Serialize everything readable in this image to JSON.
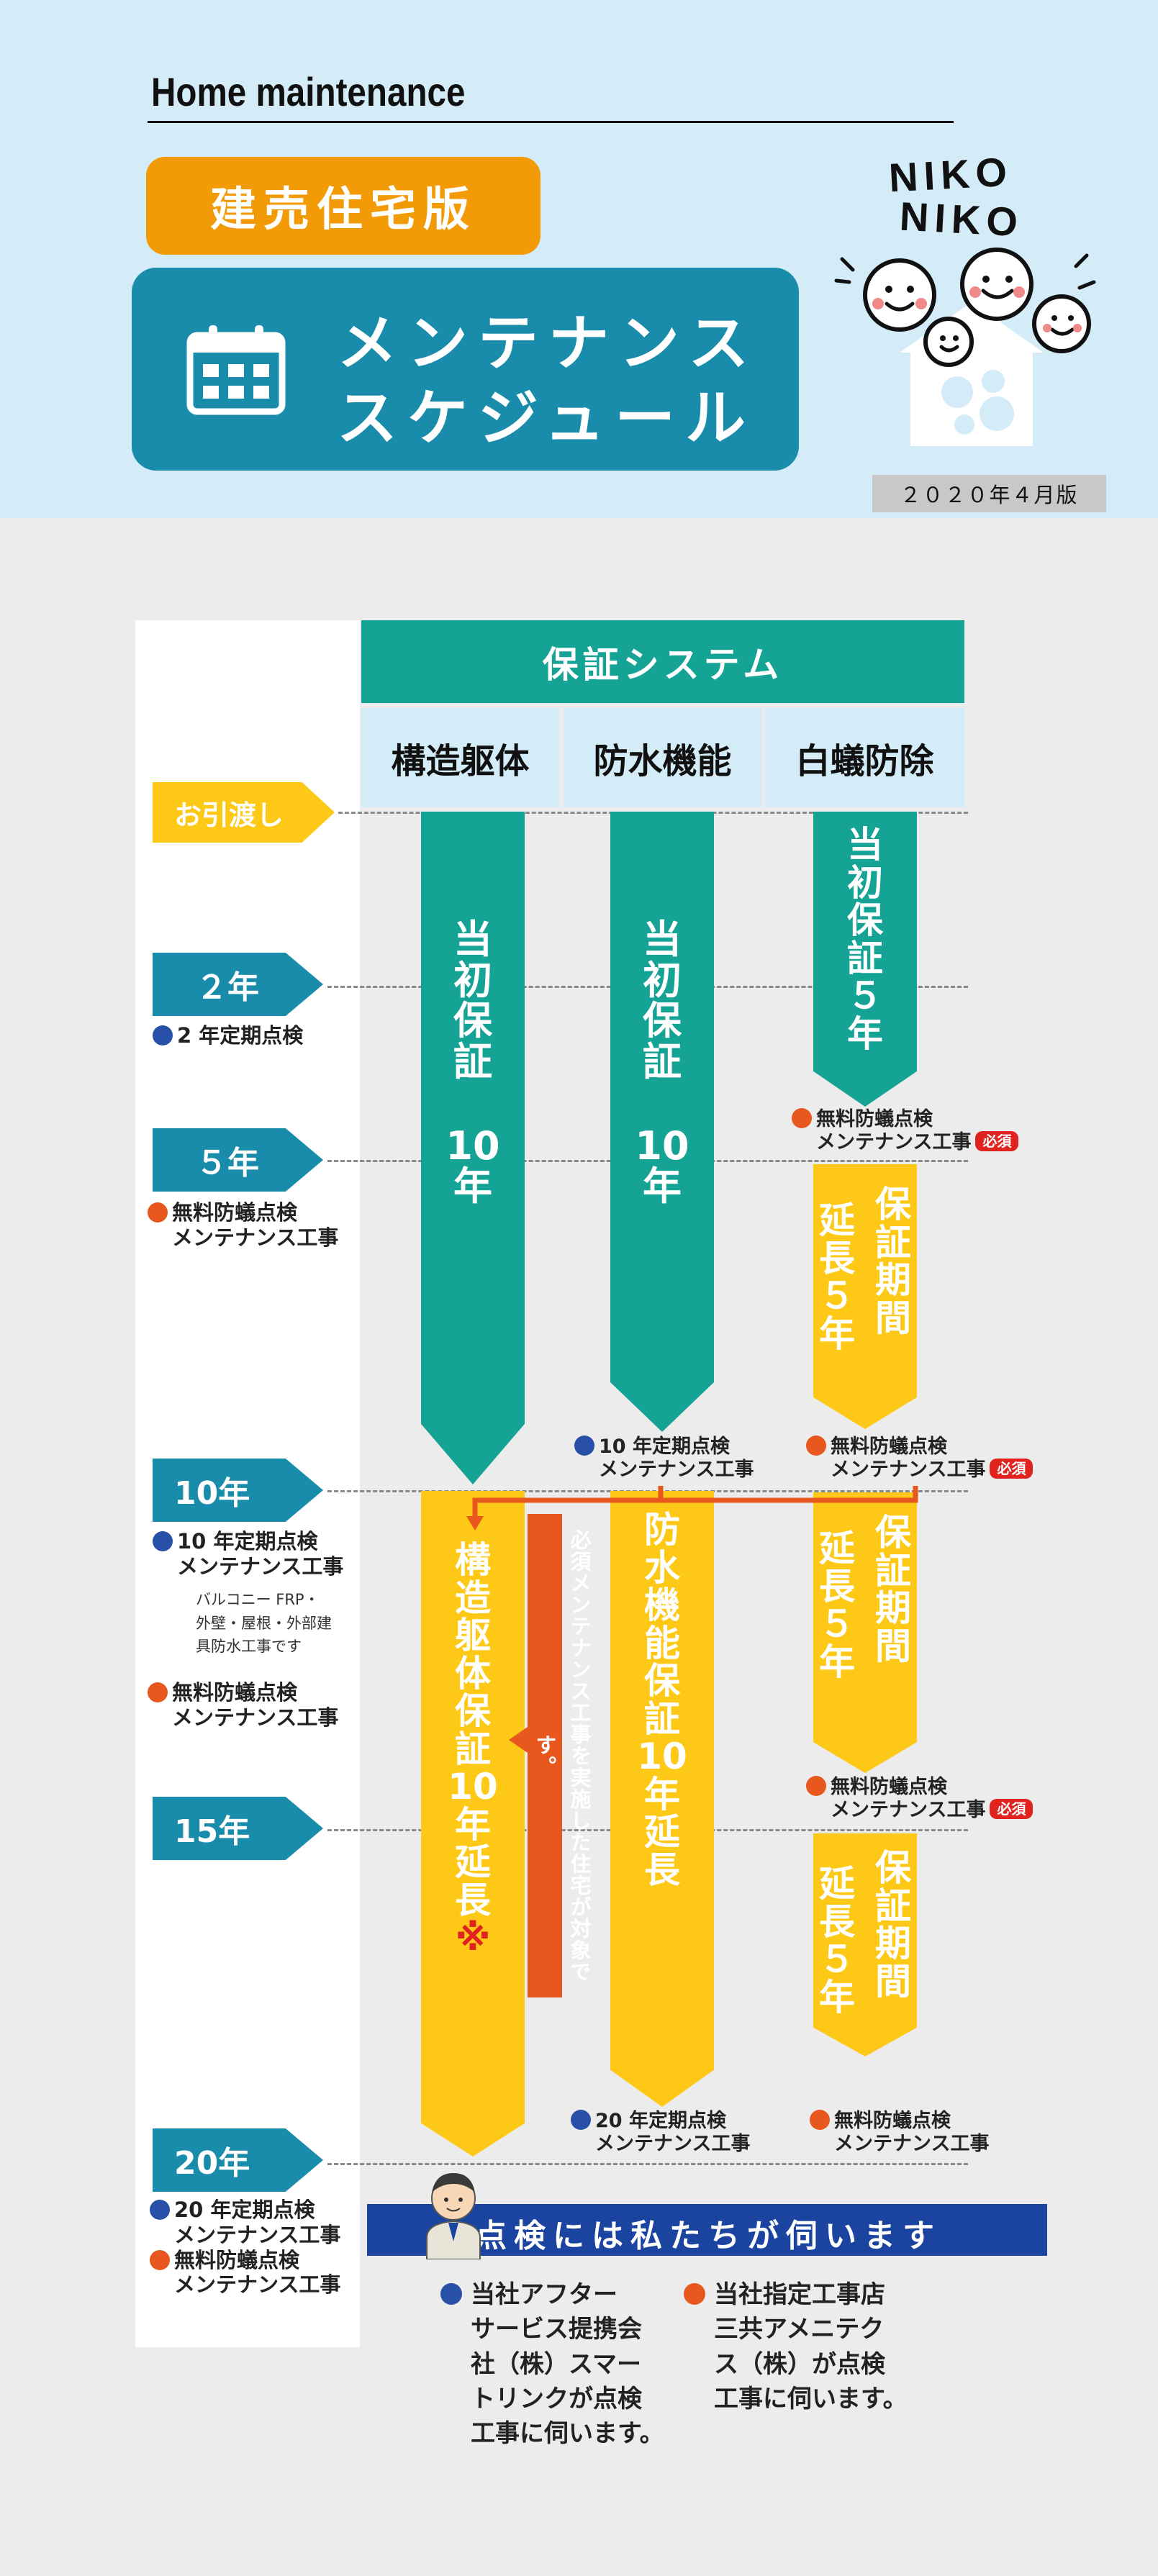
{
  "header": {
    "brand": "Home maintenance",
    "pill": "建売住宅版",
    "title_line1": "メンテナンス",
    "title_line2": "スケジュール",
    "logo_line1": "NIKO",
    "logo_line2": "NIKO",
    "edition": "２０２０年４月版"
  },
  "table": {
    "system_header": "保証システム",
    "columns": [
      "構造躯体",
      "防水機能",
      "白蟻防除"
    ]
  },
  "milestones": [
    "お引渡し",
    "２年",
    "５年",
    "10年",
    "15年",
    "20年"
  ],
  "left_notes": {
    "y2": "2 年定期点検",
    "y5_a": "無料防蟻点検",
    "y5_b": "メンテナンス工事",
    "y10_a": "10 年定期点検",
    "y10_b": "メンテナンス工事",
    "y10_small": [
      "バルコニー FRP・",
      "外壁・屋根・外部建",
      "具防水工事です"
    ],
    "y10_c": "無料防蟻点検",
    "y10_d": "メンテナンス工事",
    "y20_a": "20 年定期点検",
    "y20_b": "メンテナンス工事",
    "y20_c": "無料防蟻点検",
    "y20_d": "メンテナンス工事"
  },
  "bars": {
    "initial10": [
      "当",
      "初",
      "保",
      "証",
      "",
      "10",
      "年"
    ],
    "initial5": [
      "当",
      "初",
      "保",
      "証",
      "５",
      "年"
    ],
    "ext5_col1": [
      "保",
      "証",
      "期",
      "間"
    ],
    "ext5_col2": [
      "延",
      "長",
      "５",
      "年"
    ],
    "struct_ext": [
      "構",
      "造",
      "躯",
      "体",
      "保",
      "証",
      "10",
      "年",
      "延",
      "長",
      "※"
    ],
    "water_ext": [
      "防",
      "水",
      "機",
      "能",
      "保",
      "証",
      "10",
      "年",
      "延",
      "長"
    ],
    "must_note": "必須メンテナンス工事を実施した住宅が対象です。"
  },
  "chart_notes": {
    "termite5_a": "無料防蟻点検",
    "termite5_b": "メンテナンス工事",
    "water10_a": "10 年定期点検",
    "water10_b": "メンテナンス工事",
    "termite10_a": "無料防蟻点検",
    "termite10_b": "メンテナンス工事",
    "termite15_a": "無料防蟻点検",
    "termite15_b": "メンテナンス工事",
    "water20_a": "20 年定期点検",
    "water20_b": "メンテナンス工事",
    "termite20_a": "無料防蟻点検",
    "termite20_b": "メンテナンス工事",
    "must_badge": "必須"
  },
  "footer": {
    "banner": "点検には私たちが伺います",
    "blue_lines": [
      "当社アフター",
      "サービス提携会",
      "社（株）スマー",
      "トリンクが点検",
      "工事に伺います。"
    ],
    "orange_lines": [
      "当社指定工事店",
      "三共アメニテク",
      "ス（株）が点検",
      "工事に伺います。"
    ]
  },
  "colors": {
    "header_bg": "#d3ecf7",
    "teal": "#14a394",
    "blue": "#1a8cab",
    "yellow": "#fdc816",
    "orange": "#f29b06",
    "red": "#e8581e",
    "navy": "#1a44a0"
  }
}
